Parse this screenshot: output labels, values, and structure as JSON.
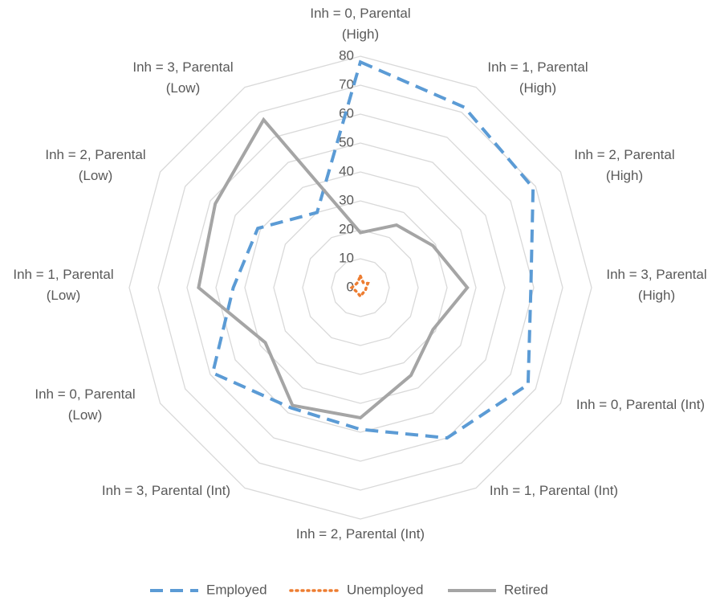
{
  "chart_data": {
    "type": "radar",
    "categories": [
      "Inh = 0, Parental (High)",
      "Inh = 1, Parental (High)",
      "Inh = 2, Parental (High)",
      "Inh = 3, Parental (High)",
      "Inh = 0, Parental (Int)",
      "Inh = 1, Parental (Int)",
      "Inh = 2, Parental (Int)",
      "Inh = 3, Parental (Int)",
      "Inh = 0, Parental (Low)",
      "Inh = 1, Parental (Low)",
      "Inh = 2, Parental (Low)",
      "Inh = 3, Parental (Low)"
    ],
    "series": [
      {
        "name": "Employed",
        "color": "#5b9bd5",
        "dash": "dashed",
        "values": [
          78,
          72,
          69,
          59,
          67,
          60,
          49,
          48,
          59,
          44,
          41,
          30
        ]
      },
      {
        "name": "Unemployed",
        "color": "#ed7d31",
        "dash": "dotted",
        "values": [
          4,
          2,
          3,
          2,
          2,
          2,
          3,
          2,
          2,
          3,
          2,
          2
        ]
      },
      {
        "name": "Retired",
        "color": "#a5a5a5",
        "dash": "solid",
        "values": [
          19,
          25,
          29,
          37,
          29,
          35,
          45,
          47,
          38,
          56,
          58,
          67
        ]
      }
    ],
    "ylim": [
      0,
      80
    ],
    "yticks": [
      0,
      10,
      20,
      30,
      40,
      50,
      60,
      70,
      80
    ],
    "grid": true,
    "legend": "bottom"
  }
}
